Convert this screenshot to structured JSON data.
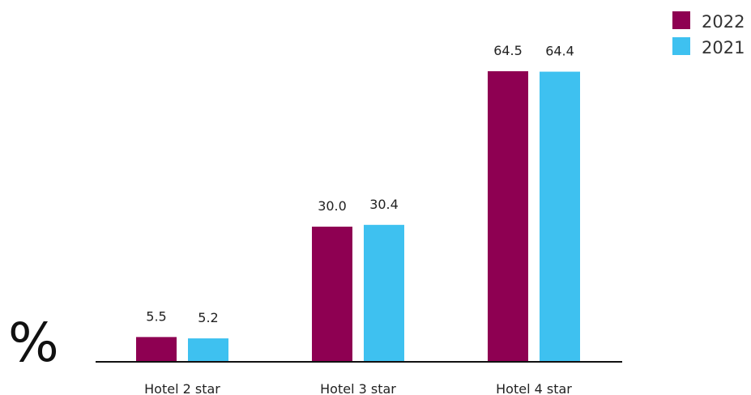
{
  "chart_data": {
    "type": "bar",
    "title": "",
    "xlabel": "",
    "ylabel": "%",
    "ylim": [
      0,
      70
    ],
    "grid": false,
    "legend_position": "top-right",
    "categories": [
      "Hotel 2 star",
      "Hotel 3 star",
      "Hotel 4 star"
    ],
    "series": [
      {
        "name": "2022",
        "color": "#8e0052",
        "values": [
          5.5,
          30.0,
          64.5
        ],
        "labels": [
          "5.5",
          "30.0",
          "64.5"
        ]
      },
      {
        "name": "2021",
        "color": "#3ec1f0",
        "values": [
          5.2,
          30.4,
          64.4
        ],
        "labels": [
          "5.2",
          "30.4",
          "64.4"
        ]
      }
    ]
  }
}
